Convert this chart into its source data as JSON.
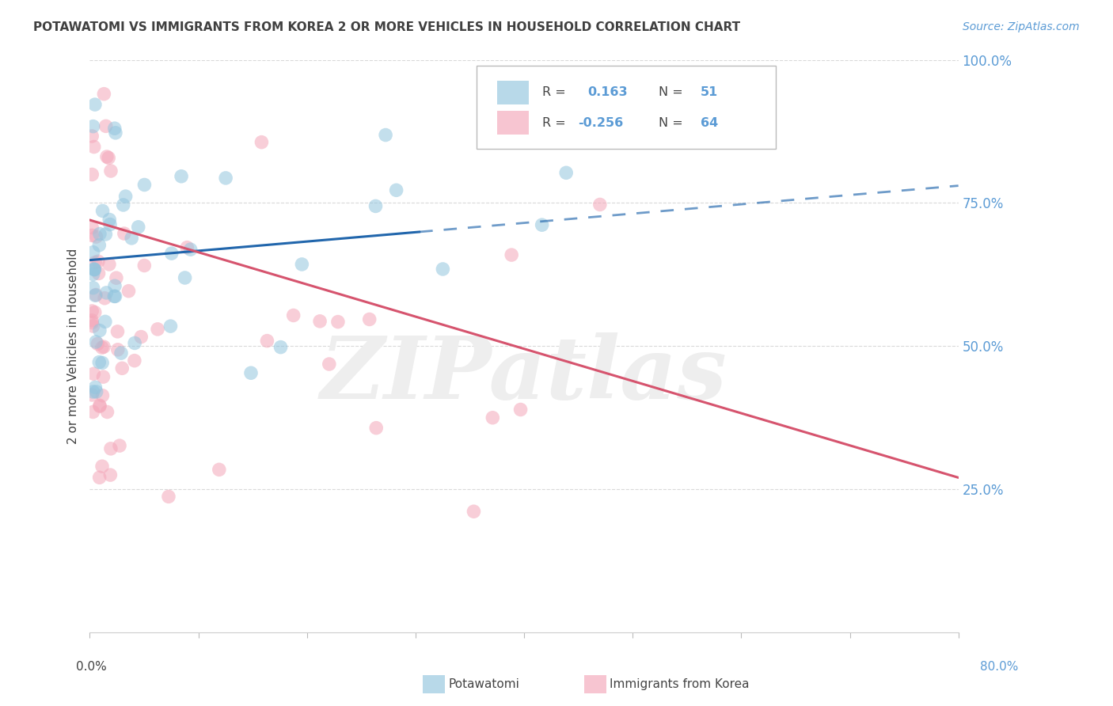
{
  "title": "POTAWATOMI VS IMMIGRANTS FROM KOREA 2 OR MORE VEHICLES IN HOUSEHOLD CORRELATION CHART",
  "source": "Source: ZipAtlas.com",
  "ylabel": "2 or more Vehicles in Household",
  "xlim": [
    0.0,
    80.0
  ],
  "ylim": [
    0.0,
    100.0
  ],
  "yticks": [
    25.0,
    50.0,
    75.0,
    100.0
  ],
  "legend_labels": [
    "Potawatomi",
    "Immigrants from Korea"
  ],
  "legend_r_blue": "0.163",
  "legend_n_blue": "51",
  "legend_r_pink": "-0.256",
  "legend_n_pink": "64",
  "blue_color": "#92c5de",
  "pink_color": "#f4a7b9",
  "blue_line_color": "#2166ac",
  "pink_line_color": "#d6546e",
  "blue_R": 0.163,
  "blue_N": 51,
  "pink_R": -0.256,
  "pink_N": 64,
  "watermark_text": "ZIPatlas",
  "background": "#ffffff",
  "grid_color": "#d9d9d9",
  "right_axis_color": "#5b9bd5",
  "title_color": "#404040",
  "text_color": "#404040",
  "source_color": "#5b9bd5",
  "blue_line_start_y": 65.0,
  "blue_line_end_y": 78.0,
  "pink_line_start_y": 72.0,
  "pink_line_end_y": 27.0
}
